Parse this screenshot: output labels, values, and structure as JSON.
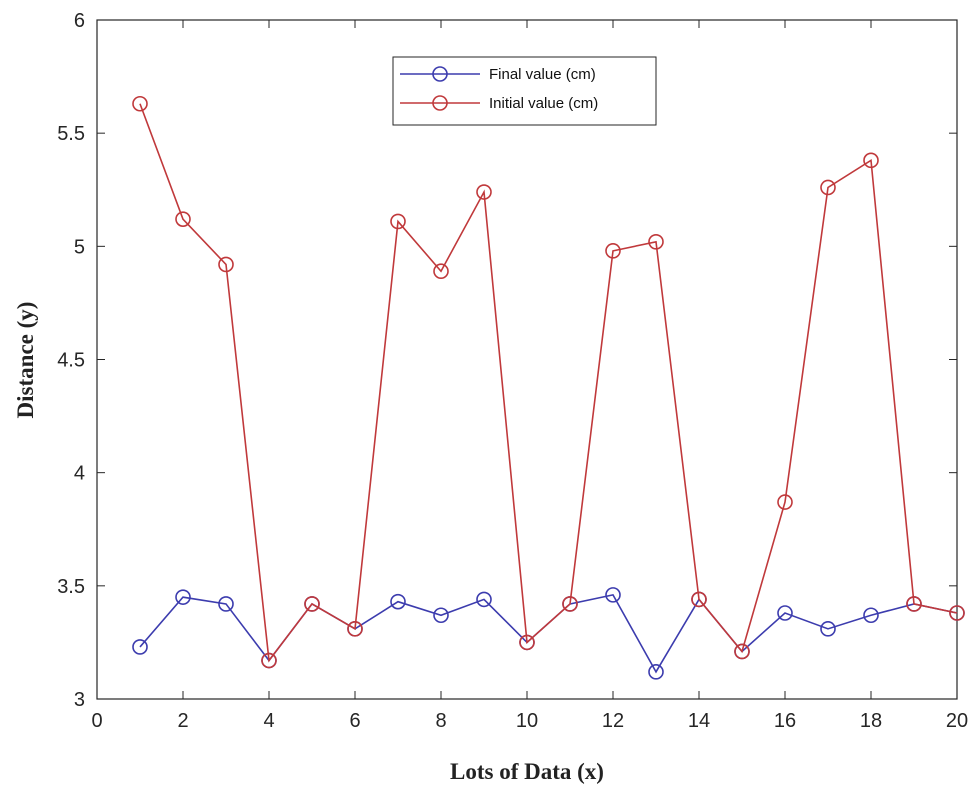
{
  "chart_data": {
    "type": "line",
    "title": "",
    "xlabel": "Lots of Data (x)",
    "ylabel": "Distance (y)",
    "xlim": [
      0,
      20
    ],
    "ylim": [
      3,
      6
    ],
    "xticks": [
      "0",
      "2",
      "4",
      "6",
      "8",
      "10",
      "12",
      "14",
      "16",
      "18",
      "20"
    ],
    "yticks": [
      "3",
      "3.5",
      "4",
      "4.5",
      "5",
      "5.5",
      "6"
    ],
    "grid": false,
    "legend_position": "top-center",
    "x": [
      1,
      2,
      3,
      4,
      5,
      6,
      7,
      8,
      9,
      10,
      11,
      12,
      13,
      14,
      15,
      16,
      17,
      18,
      19,
      20
    ],
    "series": [
      {
        "name": "Final value (cm)",
        "color": "#3c3cae",
        "marker": "circle",
        "values": [
          3.23,
          3.45,
          3.42,
          3.17,
          3.42,
          3.31,
          3.43,
          3.37,
          3.44,
          3.25,
          3.42,
          3.46,
          3.12,
          3.44,
          3.21,
          3.38,
          3.31,
          3.37,
          3.42,
          3.38
        ]
      },
      {
        "name": "Initial value (cm)",
        "color": "#c0393b",
        "marker": "circle",
        "values": [
          5.63,
          5.12,
          4.92,
          3.17,
          3.42,
          3.31,
          5.11,
          4.89,
          5.24,
          3.25,
          3.42,
          4.98,
          5.02,
          3.44,
          3.21,
          3.87,
          5.26,
          5.38,
          3.42,
          3.38
        ]
      }
    ]
  }
}
